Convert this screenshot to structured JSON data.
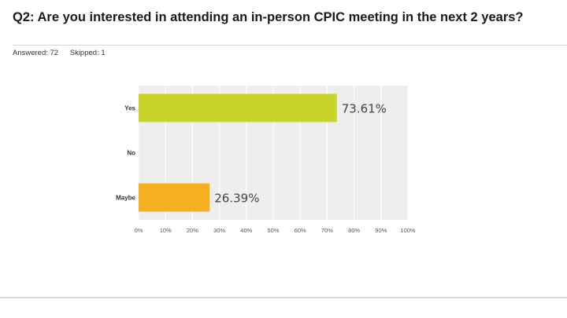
{
  "question": {
    "title": "Q2: Are you interested in attending an in-person CPIC meeting in the next 2 years?",
    "answered": "Answered: 72",
    "skipped": "Skipped: 1"
  },
  "chart_data": {
    "type": "bar",
    "orientation": "horizontal",
    "categories": [
      "Yes",
      "No",
      "Maybe"
    ],
    "values": [
      73.61,
      0,
      26.39
    ],
    "value_labels": [
      "73.61%",
      "",
      "26.39%"
    ],
    "colors": [
      "#c8d42a",
      "#e8e8e8",
      "#f5af1f"
    ],
    "xlim": [
      0,
      100
    ],
    "xticks": [
      "0%",
      "10%",
      "20%",
      "30%",
      "40%",
      "50%",
      "60%",
      "70%",
      "80%",
      "90%",
      "100%"
    ],
    "grid": true,
    "plot_background": "#eeeeee",
    "title": "",
    "xlabel": "",
    "ylabel": ""
  }
}
